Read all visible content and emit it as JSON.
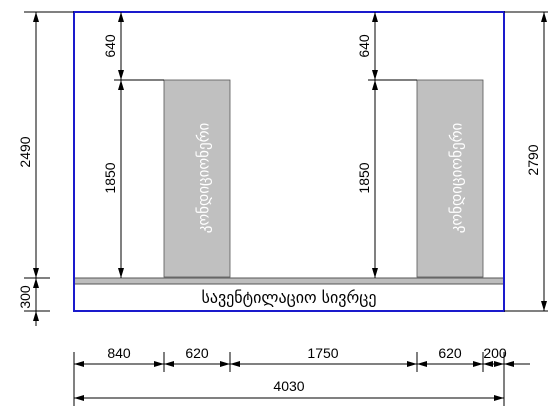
{
  "colors": {
    "frame": "#1a1acc",
    "panel_fill": "#c0c0c0",
    "vent_strip_fill": "#bdbdbd",
    "panel_text": "#ffffff",
    "dimension_line": "#000000"
  },
  "panels": {
    "left_label": "კონდიციონერი",
    "right_label": "კონდიციონერი"
  },
  "vent_space_label": "სავენტილაციო სივრცე",
  "dimensions": {
    "left_total_height": "2490",
    "left_bottom": "300",
    "inner_top_left": "640",
    "inner_height_left": "1850",
    "inner_top_right": "640",
    "inner_height_right": "1850",
    "right_total_height": "2790",
    "bottom_840": "840",
    "bottom_620_left": "620",
    "bottom_1750": "1750",
    "bottom_620_right": "620",
    "bottom_200": "200",
    "bottom_total": "4030"
  }
}
